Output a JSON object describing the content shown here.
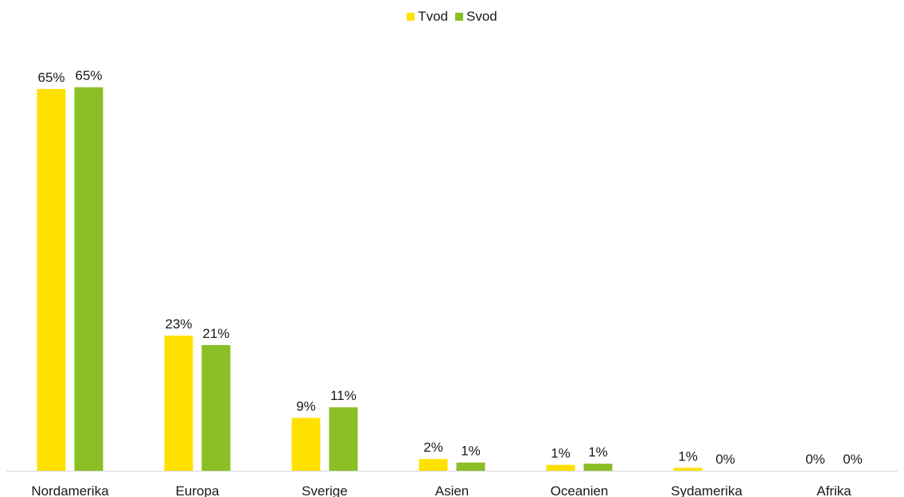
{
  "chart_data": {
    "type": "bar",
    "categories": [
      "Nordamerika",
      "Europa",
      "Sverige",
      "Asien",
      "Oceanien",
      "Sydamerika",
      "Afrika"
    ],
    "series": [
      {
        "name": "Tvod",
        "color": "#ffe100",
        "values": [
          65,
          23,
          9,
          2,
          1,
          0.5,
          0
        ],
        "labels": [
          "65%",
          "23%",
          "9%",
          "2%",
          "1%",
          "1%",
          "0%"
        ]
      },
      {
        "name": "Svod",
        "color": "#8abf26",
        "values": [
          65.3,
          21.4,
          10.8,
          1.4,
          1.2,
          0,
          0
        ],
        "labels": [
          "65%",
          "21%",
          "11%",
          "1%",
          "1%",
          "0%",
          "0%"
        ]
      }
    ],
    "title": "",
    "xlabel": "",
    "ylabel": "",
    "ylim": [
      0,
      70
    ],
    "grid": false,
    "legend": "top-center",
    "axis_color": "#d9d9d9"
  }
}
